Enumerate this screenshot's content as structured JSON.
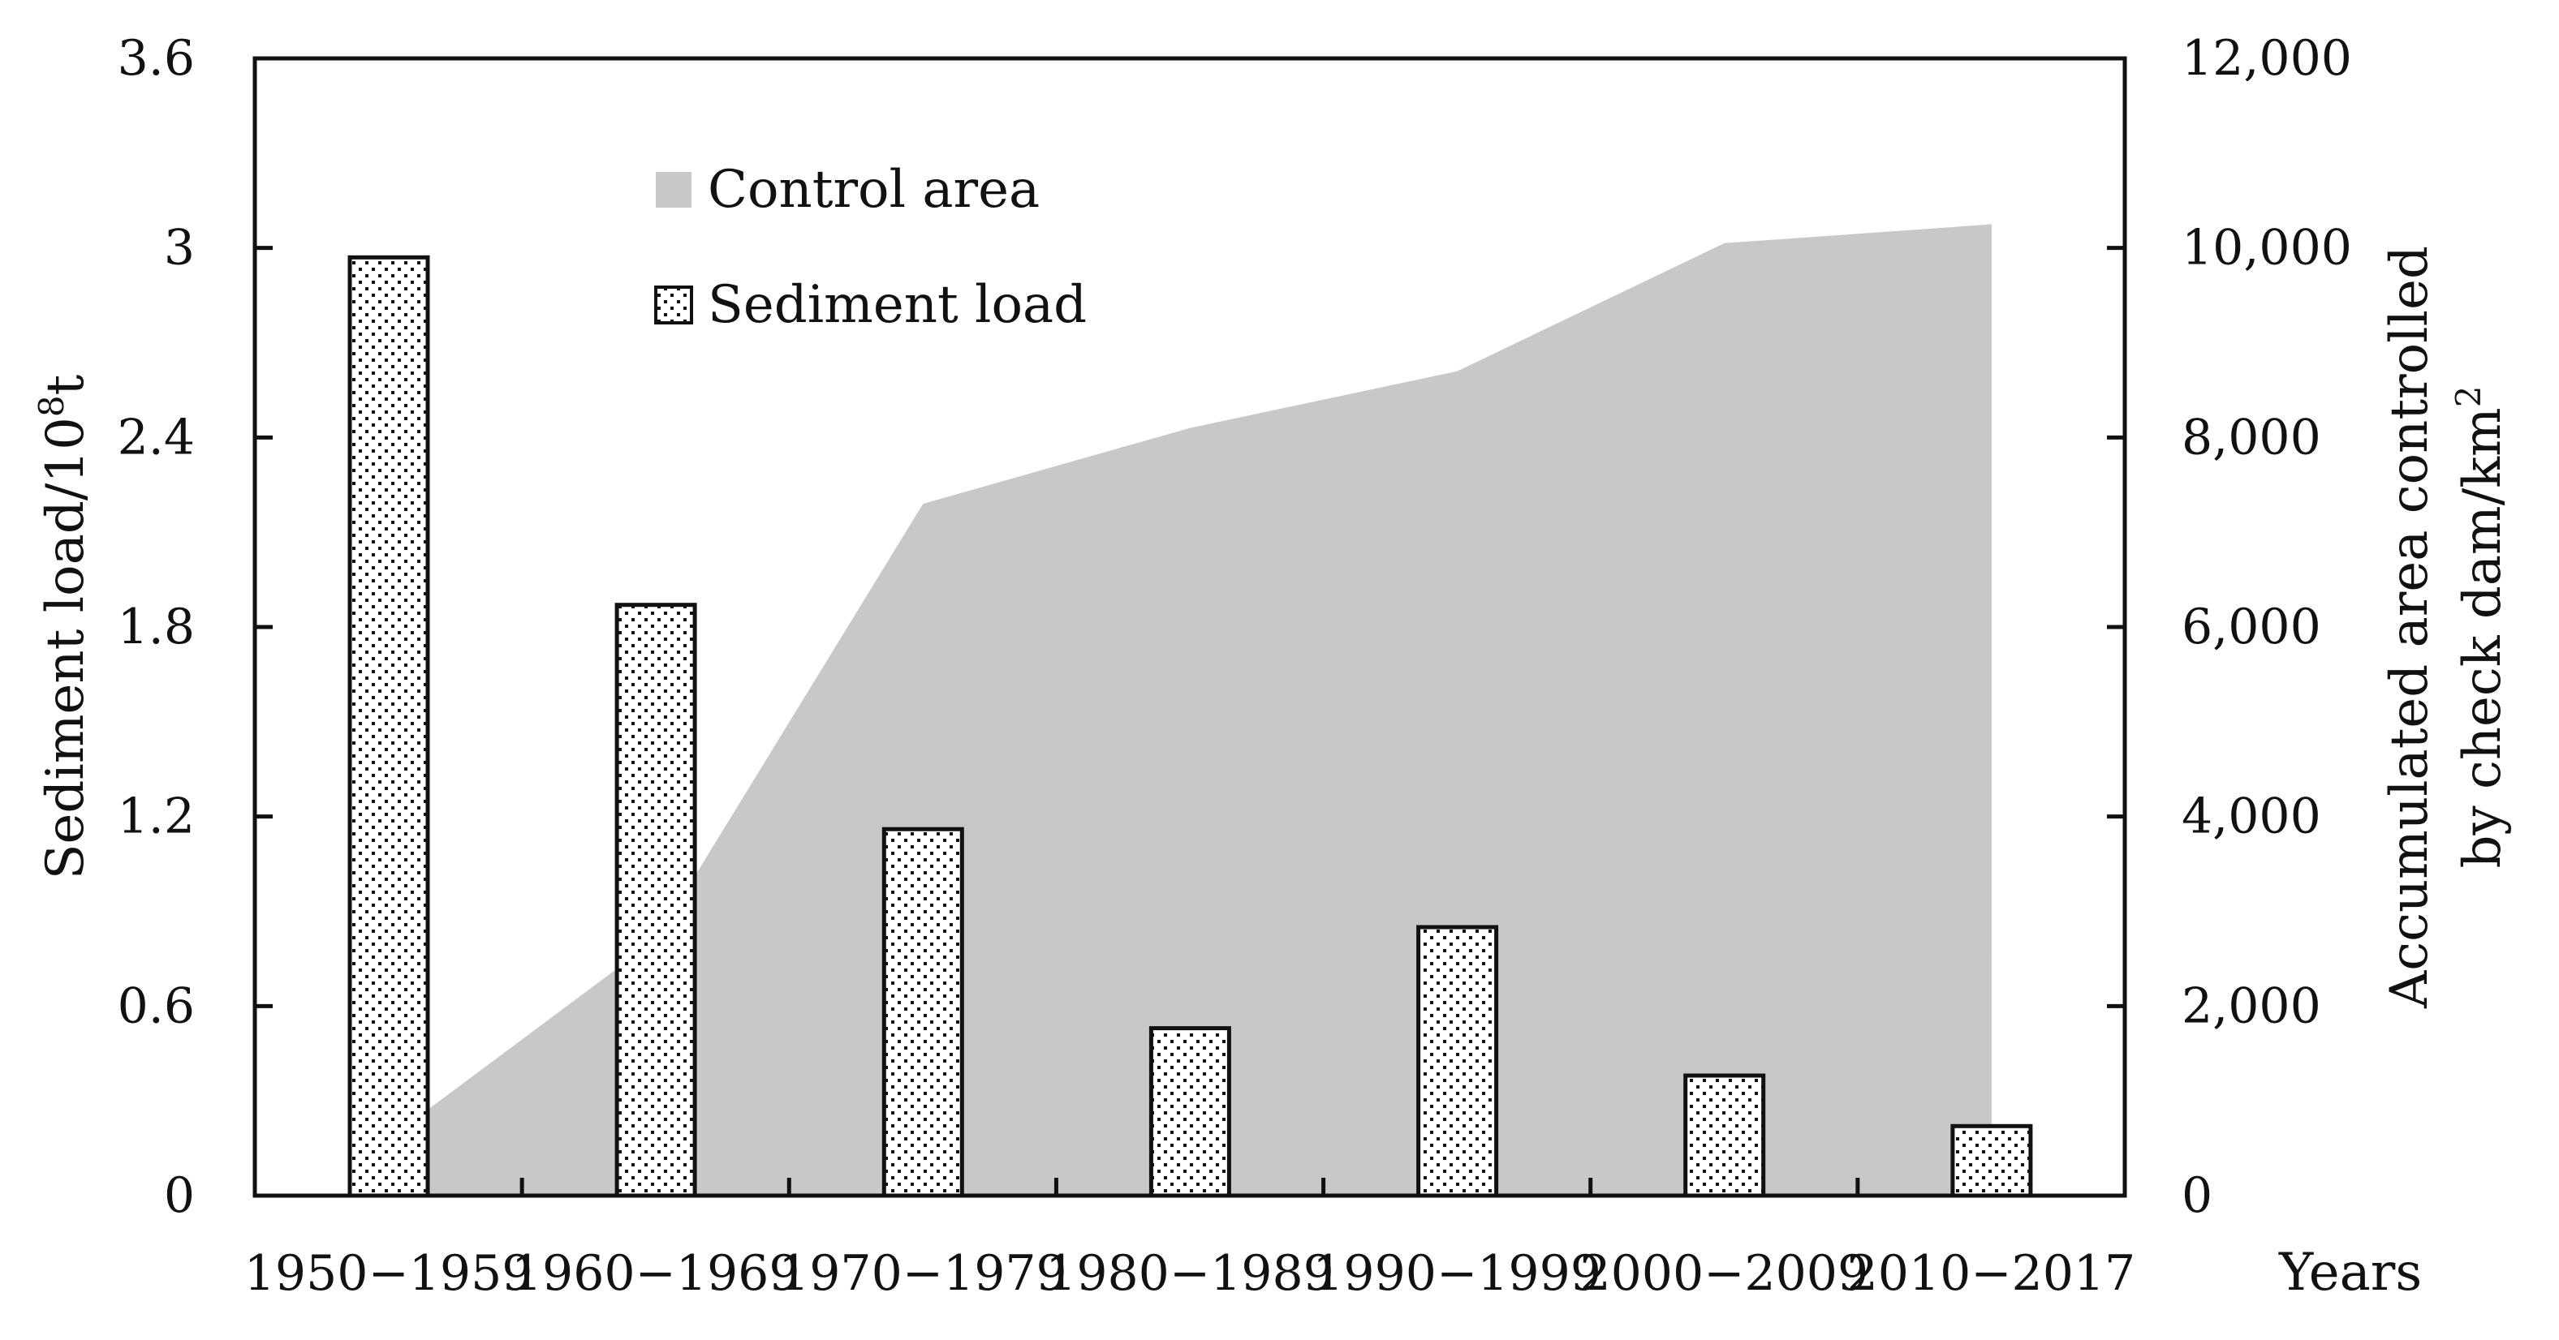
{
  "chart_data": {
    "type": "bar",
    "title": "",
    "categories": [
      "1950−1959",
      "1960−1969",
      "1970−1979",
      "1980−1989",
      "1990−1999",
      "2000−2009",
      "2010−2017"
    ],
    "xlabel": "Years",
    "ylabel": {
      "main": "Sediment load/10",
      "superscript": "8",
      "suffix": "t"
    },
    "ylabel_right": {
      "line1": "Accumulated area controlled",
      "line2_main": "by check dam/km",
      "line2_superscript": "2"
    },
    "ylim": [
      0,
      3.6
    ],
    "ylim_right": [
      0,
      12000
    ],
    "yticks": [
      {
        "value": 0,
        "label": "0"
      },
      {
        "value": 0.6,
        "label": "0.6"
      },
      {
        "value": 1.2,
        "label": "1.2"
      },
      {
        "value": 1.8,
        "label": "1.8"
      },
      {
        "value": 2.4,
        "label": "2.4"
      },
      {
        "value": 3.0,
        "label": "3"
      },
      {
        "value": 3.6,
        "label": "3.6"
      }
    ],
    "yticks_right": [
      {
        "value": 0,
        "label": "0"
      },
      {
        "value": 2000,
        "label": "2,000"
      },
      {
        "value": 4000,
        "label": "4,000"
      },
      {
        "value": 6000,
        "label": "6,000"
      },
      {
        "value": 8000,
        "label": "8,000"
      },
      {
        "value": 10000,
        "label": "10,000"
      },
      {
        "value": 12000,
        "label": "12,000"
      }
    ],
    "grid": false,
    "legend_position": "top-center",
    "series": [
      {
        "name": "Control area",
        "type": "area",
        "axis": "right",
        "color": "#c8c8c8",
        "values": [
          600,
          2700,
          7300,
          8100,
          8700,
          10050,
          10250
        ]
      },
      {
        "name": "Sediment load",
        "type": "bar",
        "axis": "left",
        "pattern": "dotted",
        "values": [
          2.97,
          1.87,
          1.16,
          0.53,
          0.85,
          0.38,
          0.22
        ]
      }
    ]
  }
}
